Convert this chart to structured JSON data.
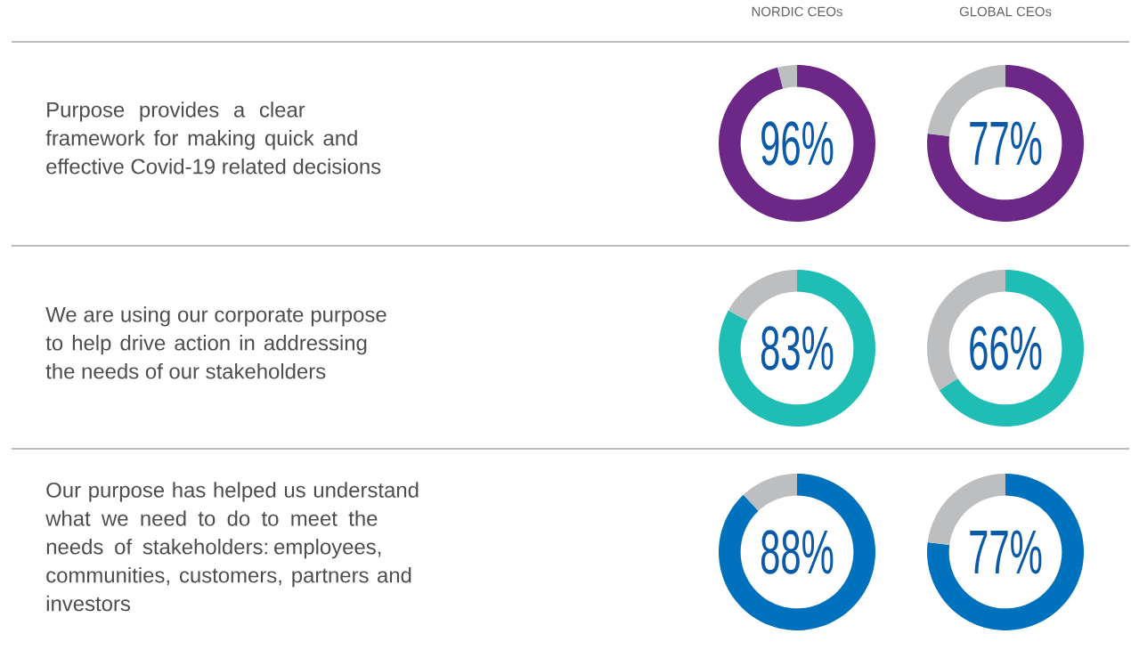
{
  "chart_data": [
    {
      "type": "donut",
      "title": "NORDIC CEOs",
      "annotations": [
        "Purpose provides a clear framework for making quick and effective Covid-19 related decisions"
      ],
      "categories": [
        null,
        null
      ],
      "values": [
        96,
        4
      ],
      "colors": [
        "#6d2787",
        "#bcbec0"
      ],
      "value_labels": [
        "96%",
        null
      ]
    },
    {
      "type": "donut",
      "title": "GLOBAL CEOs",
      "categories": [
        null,
        null
      ],
      "values": [
        77,
        23
      ],
      "colors": [
        "#6d2787",
        "#bcbec0"
      ],
      "value_labels": [
        "77%",
        null
      ]
    },
    {
      "type": "donut",
      "annotations": [
        "We are using our corporate purpose to help drive action in addressing the needs of our stakeholders"
      ],
      "categories": [
        null,
        null
      ],
      "values": [
        83,
        17
      ],
      "colors": [
        "#1fbdb3",
        "#bcbec0"
      ],
      "value_labels": [
        "83%",
        null
      ]
    },
    {
      "type": "donut",
      "categories": [
        null,
        null
      ],
      "values": [
        66,
        34
      ],
      "colors": [
        "#1fbdb3",
        "#bcbec0"
      ],
      "value_labels": [
        "66%",
        null
      ]
    },
    {
      "type": "donut",
      "annotations": [
        "Our purpose has helped us understand what we need to do to meet the needs of stakeholders: employees, communities, customers, partners and investors"
      ],
      "categories": [
        null,
        null
      ],
      "values": [
        88,
        12
      ],
      "colors": [
        "#0071bc",
        "#bcbec0"
      ],
      "value_labels": [
        "88%",
        null
      ]
    },
    {
      "type": "donut",
      "categories": [
        null,
        null
      ],
      "values": [
        77,
        23
      ],
      "colors": [
        "#0071bc",
        "#bcbec0"
      ],
      "value_labels": [
        "77%",
        null
      ]
    }
  ]
}
